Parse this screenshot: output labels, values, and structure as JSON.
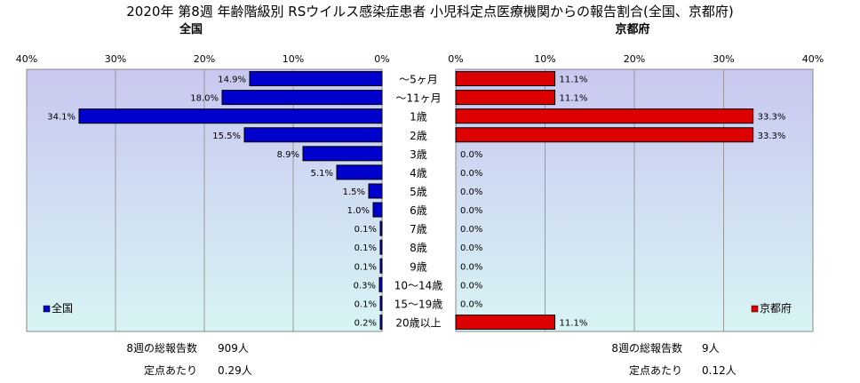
{
  "title": "2020年 第8週 年齢階級別 RSウイルス感染症患者 小児科定点医療機関からの報告割合(全国、京都府)",
  "chart_data": [
    {
      "type": "bar",
      "orientation": "horizontal",
      "title": "全国",
      "legend": "全国",
      "legend_position": "bottom-left",
      "direction": "right-to-left",
      "xlim": [
        0,
        40
      ],
      "ticks": [
        "40%",
        "30%",
        "20%",
        "10%",
        "0%"
      ],
      "tick_values": [
        40,
        30,
        20,
        10,
        0
      ],
      "grid": true,
      "color": "#0000cc",
      "categories": [
        "～5ヶ月",
        "～11ヶ月",
        "1歳",
        "2歳",
        "3歳",
        "4歳",
        "5歳",
        "6歳",
        "7歳",
        "8歳",
        "9歳",
        "10～14歳",
        "15～19歳",
        "20歳以上"
      ],
      "values": [
        14.9,
        18.0,
        34.1,
        15.5,
        8.9,
        5.1,
        1.5,
        1.0,
        0.1,
        0.1,
        0.1,
        0.3,
        0.1,
        0.2
      ],
      "labels": [
        "14.9%",
        "18.0%",
        "34.1%",
        "15.5%",
        "8.9%",
        "5.1%",
        "1.5%",
        "1.0%",
        "0.1%",
        "0.1%",
        "0.1%",
        "0.3%",
        "0.1%",
        "0.2%"
      ]
    },
    {
      "type": "bar",
      "orientation": "horizontal",
      "title": "京都府",
      "legend": "京都府",
      "legend_position": "bottom-right",
      "direction": "left-to-right",
      "xlim": [
        0,
        40
      ],
      "ticks": [
        "0%",
        "10%",
        "20%",
        "30%",
        "40%"
      ],
      "tick_values": [
        0,
        10,
        20,
        30,
        40
      ],
      "grid": true,
      "color": "#dd0000",
      "categories": [
        "～5ヶ月",
        "～11ヶ月",
        "1歳",
        "2歳",
        "3歳",
        "4歳",
        "5歳",
        "6歳",
        "7歳",
        "8歳",
        "9歳",
        "10～14歳",
        "15～19歳",
        "20歳以上"
      ],
      "values": [
        11.1,
        11.1,
        33.3,
        33.3,
        0.0,
        0.0,
        0.0,
        0.0,
        0.0,
        0.0,
        0.0,
        0.0,
        0.0,
        11.1
      ],
      "labels": [
        "11.1%",
        "11.1%",
        "33.3%",
        "33.3%",
        "0.0%",
        "0.0%",
        "0.0%",
        "0.0%",
        "0.0%",
        "0.0%",
        "0.0%",
        "0.0%",
        "0.0%",
        "11.1%"
      ]
    }
  ],
  "footer": {
    "national": {
      "total_label": "8週の総報告数",
      "total_value": "909人",
      "per_label": "定点あたり",
      "per_value": "0.29人"
    },
    "kyoto": {
      "total_label": "8週の総報告数",
      "total_value": "9人",
      "per_label": "定点あたり",
      "per_value": "0.12人"
    }
  },
  "colors": {
    "plot_top": "#c8c8f0",
    "plot_bottom": "#d8f4f4",
    "national": "#0000cc",
    "kyoto": "#dd0000"
  }
}
